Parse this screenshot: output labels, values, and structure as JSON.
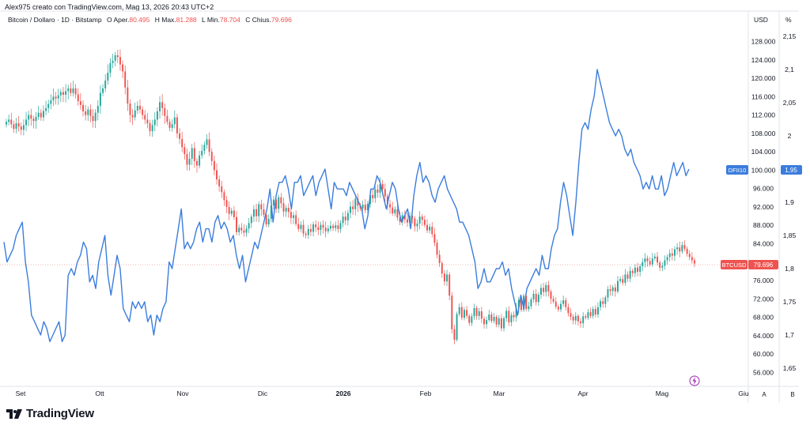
{
  "header": {
    "credit": "Alex975 creato con TradingView.com, Mag 13, 2026 20:43 UTC+2",
    "symbol": "Bitcoin / Dollaro · 1D · Bitstamp",
    "open_label": "O",
    "open_prefix": "Aper.",
    "open": "80.495",
    "high_label": "H",
    "high_prefix": "Max.",
    "high": "81.288",
    "low_label": "L",
    "low_prefix": "Min.",
    "low": "78.704",
    "close_label": "C",
    "close_prefix": "Chius.",
    "close": "79.696"
  },
  "axis_units": {
    "right": "USD",
    "left": "%"
  },
  "scale_buttons": {
    "a": "A",
    "b": "B"
  },
  "brand": {
    "name": "TradingView"
  },
  "colors": {
    "up": "#26a69a",
    "down": "#ef5350",
    "dfii": "#3b7ddd",
    "grid": "#f0f3fa"
  },
  "chart_data": {
    "type": "line",
    "x_ticks": [
      "Set",
      "Ott",
      "Nov",
      "Dic",
      "2026",
      "Feb",
      "Mar",
      "Apr",
      "Mag",
      "Giu"
    ],
    "y_left": {
      "ticks": [
        "128.000",
        "124.000",
        "120.000",
        "116.000",
        "112.000",
        "108.000",
        "104.000",
        "100.000",
        "96.000",
        "92.000",
        "88.000",
        "84.000",
        "80.000",
        "76.000",
        "72.000",
        "68.000",
        "64.000",
        "60.000",
        "56.000"
      ],
      "values": [
        128000,
        124000,
        120000,
        116000,
        112000,
        108000,
        104000,
        100000,
        96000,
        92000,
        88000,
        84000,
        80000,
        76000,
        72000,
        68000,
        64000,
        60000,
        56000
      ]
    },
    "y_right": {
      "ticks": [
        "2,15",
        "2,1",
        "2,05",
        "2",
        "1,95",
        "1,9",
        "1,85",
        "1,8",
        "1,75",
        "1,7",
        "1,65"
      ],
      "values": [
        2.15,
        2.1,
        2.05,
        2.0,
        1.95,
        1.9,
        1.85,
        1.8,
        1.75,
        1.7,
        1.65
      ]
    },
    "price_tags": [
      {
        "label": "DFII10",
        "value": "1,95"
      },
      {
        "label": "BTCUSD",
        "value": "79.696"
      }
    ],
    "grid": false,
    "series": [
      {
        "name": "BTCUSD",
        "axis": "usd",
        "style": "candles",
        "close": [
          110500,
          111000,
          110000,
          109000,
          110200,
          109500,
          108800,
          109800,
          111000,
          112000,
          111200,
          110700,
          111600,
          112500,
          111500,
          112900,
          113500,
          114400,
          115200,
          116000,
          115600,
          116300,
          117000,
          116400,
          117200,
          117800,
          116800,
          117800,
          116500,
          115000,
          114200,
          112800,
          112000,
          113200,
          111800,
          110700,
          112500,
          114000,
          116800,
          117800,
          119500,
          121200,
          123300,
          123800,
          125000,
          124600,
          123000,
          121500,
          118000,
          114500,
          112000,
          111500,
          113000,
          114000,
          113200,
          112000,
          111000,
          110200,
          108500,
          109800,
          111000,
          112800,
          114800,
          113500,
          111800,
          110500,
          109200,
          110000,
          111500,
          108000,
          106800,
          105000,
          103500,
          101200,
          102500,
          104800,
          102000,
          101000,
          103200,
          104200,
          105500,
          106700,
          104000,
          102000,
          100000,
          98000,
          96500,
          95200,
          93500,
          92000,
          90500,
          91200,
          89800,
          86500,
          87500,
          86900,
          86400,
          87300,
          88500,
          89900,
          91500,
          90000,
          92600,
          91500,
          90300,
          88200,
          89400,
          92300,
          93600,
          91600,
          94100,
          92800,
          91000,
          91800,
          90900,
          89600,
          90200,
          88300,
          87200,
          88100,
          86200,
          85900,
          87200,
          86600,
          88200,
          87600,
          87000,
          88100,
          87500,
          86700,
          87300,
          87900,
          87400,
          88000,
          87200,
          88500,
          89900,
          89100,
          90700,
          92100,
          91500,
          93800,
          92300,
          91700,
          92500,
          91300,
          92700,
          94600,
          93900,
          95800,
          95100,
          97000,
          95900,
          94300,
          92600,
          91900,
          90600,
          91500,
          89700,
          88800,
          90200,
          89300,
          88600,
          90100,
          89500,
          87800,
          88400,
          89900,
          89200,
          88100,
          86900,
          87700,
          86100,
          84200,
          81600,
          79800,
          77500,
          75800,
          77300,
          72700,
          65400,
          63100,
          68700,
          70200,
          67900,
          69600,
          68300,
          66800,
          68200,
          70000,
          68300,
          69300,
          67700,
          66500,
          67400,
          68600,
          67200,
          68100,
          66400,
          67800,
          65600,
          67800,
          69400,
          66900,
          68500,
          68000,
          70100,
          71800,
          69600,
          72700,
          69800,
          70400,
          71900,
          73100,
          71300,
          72900,
          74400,
          73500,
          75000,
          73600,
          72000,
          71400,
          70300,
          69700,
          70900,
          71700,
          70200,
          68900,
          68100,
          67300,
          68300,
          67100,
          66700,
          68200,
          67900,
          69100,
          68300,
          69800,
          68600,
          70200,
          71500,
          70900,
          72300,
          74100,
          73700,
          74500,
          73600,
          75900,
          76300,
          75500,
          77300,
          76400,
          78100,
          77600,
          78800,
          77900,
          79100,
          80000,
          80800,
          80200,
          79500,
          80800,
          81200,
          79900,
          78800,
          79200,
          80400,
          81100,
          81900,
          81400,
          82800,
          83200,
          82300,
          83700,
          82900,
          81800,
          81100,
          80400,
          79700
        ]
      },
      {
        "name": "DFII10",
        "axis": "percent",
        "style": "line",
        "values": [
          1.84,
          1.81,
          1.82,
          1.83,
          1.85,
          1.86,
          1.87,
          1.81,
          1.78,
          1.73,
          1.72,
          1.71,
          1.7,
          1.72,
          1.71,
          1.69,
          1.7,
          1.71,
          1.72,
          1.69,
          1.7,
          1.79,
          1.8,
          1.79,
          1.81,
          1.82,
          1.84,
          1.83,
          1.78,
          1.79,
          1.77,
          1.81,
          1.83,
          1.85,
          1.79,
          1.76,
          1.79,
          1.82,
          1.8,
          1.74,
          1.73,
          1.72,
          1.75,
          1.74,
          1.75,
          1.74,
          1.75,
          1.72,
          1.73,
          1.7,
          1.73,
          1.72,
          1.74,
          1.75,
          1.81,
          1.8,
          1.83,
          1.86,
          1.89,
          1.83,
          1.84,
          1.83,
          1.84,
          1.86,
          1.87,
          1.84,
          1.86,
          1.86,
          1.84,
          1.87,
          1.88,
          1.86,
          1.87,
          1.86,
          1.84,
          1.85,
          1.82,
          1.8,
          1.82,
          1.78,
          1.8,
          1.82,
          1.84,
          1.83,
          1.85,
          1.87,
          1.89,
          1.92,
          1.87,
          1.91,
          1.93,
          1.93,
          1.94,
          1.92,
          1.89,
          1.93,
          1.93,
          1.94,
          1.91,
          1.92,
          1.93,
          1.94,
          1.91,
          1.93,
          1.94,
          1.95,
          1.92,
          1.89,
          1.93,
          1.92,
          1.92,
          1.92,
          1.91,
          1.93,
          1.92,
          1.91,
          1.9,
          1.89,
          1.86,
          1.88,
          1.92,
          1.92,
          1.94,
          1.93,
          1.91,
          1.89,
          1.91,
          1.93,
          1.92,
          1.89,
          1.87,
          1.88,
          1.89,
          1.86,
          1.91,
          1.94,
          1.96,
          1.93,
          1.94,
          1.93,
          1.91,
          1.9,
          1.92,
          1.93,
          1.94,
          1.92,
          1.91,
          1.9,
          1.89,
          1.87,
          1.87,
          1.86,
          1.85,
          1.83,
          1.81,
          1.77,
          1.78,
          1.8,
          1.78,
          1.78,
          1.79,
          1.8,
          1.8,
          1.81,
          1.79,
          1.8,
          1.77,
          1.75,
          1.73,
          1.76,
          1.74,
          1.77,
          1.78,
          1.79,
          1.8,
          1.79,
          1.82,
          1.8,
          1.8,
          1.83,
          1.85,
          1.86,
          1.9,
          1.93,
          1.91,
          1.88,
          1.85,
          1.9,
          1.96,
          2.01,
          2.02,
          2.01,
          2.04,
          2.06,
          2.1,
          2.08,
          2.06,
          2.04,
          2.02,
          2.01,
          2.0,
          2.01,
          2.0,
          1.98,
          1.97,
          1.98,
          1.96,
          1.95,
          1.94,
          1.92,
          1.93,
          1.92,
          1.94,
          1.92,
          1.92,
          1.94,
          1.91,
          1.92,
          1.94,
          1.96,
          1.94,
          1.95,
          1.96,
          1.94,
          1.95
        ]
      }
    ]
  }
}
